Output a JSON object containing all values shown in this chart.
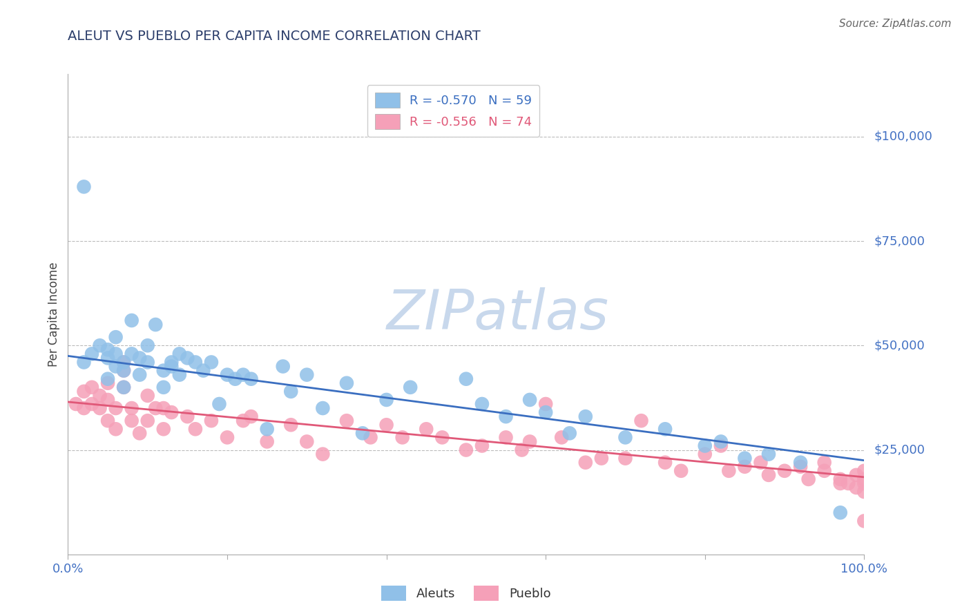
{
  "title": "ALEUT VS PUEBLO PER CAPITA INCOME CORRELATION CHART",
  "source_text": "Source: ZipAtlas.com",
  "ylabel": "Per Capita Income",
  "xlim": [
    0.0,
    1.0
  ],
  "ylim": [
    0,
    115000
  ],
  "aleut_R": -0.57,
  "aleut_N": 59,
  "pueblo_R": -0.556,
  "pueblo_N": 74,
  "aleut_color": "#90C0E8",
  "pueblo_color": "#F5A0B8",
  "aleut_line_color": "#3A6EC0",
  "pueblo_line_color": "#E05878",
  "title_color": "#2C3E6B",
  "ytick_color": "#4472C4",
  "xtick_color": "#4472C4",
  "source_color": "#666666",
  "watermark_zip_color": "#C8D8EC",
  "watermark_atlas_color": "#C8D8EC",
  "background_color": "#FFFFFF",
  "grid_color": "#BBBBBB",
  "aleut_intercept": 47500,
  "aleut_slope": -25000,
  "pueblo_intercept": 36500,
  "pueblo_slope": -18000,
  "aleut_x": [
    0.02,
    0.03,
    0.04,
    0.05,
    0.05,
    0.05,
    0.06,
    0.06,
    0.06,
    0.07,
    0.07,
    0.07,
    0.08,
    0.08,
    0.09,
    0.09,
    0.1,
    0.1,
    0.11,
    0.12,
    0.12,
    0.13,
    0.13,
    0.14,
    0.14,
    0.15,
    0.16,
    0.17,
    0.18,
    0.19,
    0.2,
    0.21,
    0.22,
    0.23,
    0.25,
    0.27,
    0.28,
    0.3,
    0.32,
    0.35,
    0.37,
    0.4,
    0.43,
    0.5,
    0.52,
    0.55,
    0.58,
    0.6,
    0.63,
    0.65,
    0.7,
    0.75,
    0.8,
    0.82,
    0.85,
    0.88,
    0.92,
    0.97,
    0.02
  ],
  "aleut_y": [
    88000,
    48000,
    50000,
    49000,
    47000,
    42000,
    52000,
    48000,
    45000,
    46000,
    44000,
    40000,
    56000,
    48000,
    47000,
    43000,
    50000,
    46000,
    55000,
    44000,
    40000,
    46000,
    45000,
    48000,
    43000,
    47000,
    46000,
    44000,
    46000,
    36000,
    43000,
    42000,
    43000,
    42000,
    30000,
    45000,
    39000,
    43000,
    35000,
    41000,
    29000,
    37000,
    40000,
    42000,
    36000,
    33000,
    37000,
    34000,
    29000,
    33000,
    28000,
    30000,
    26000,
    27000,
    23000,
    24000,
    22000,
    10000,
    46000
  ],
  "pueblo_x": [
    0.01,
    0.02,
    0.02,
    0.03,
    0.03,
    0.04,
    0.04,
    0.05,
    0.05,
    0.05,
    0.06,
    0.06,
    0.07,
    0.07,
    0.07,
    0.08,
    0.08,
    0.09,
    0.1,
    0.1,
    0.11,
    0.12,
    0.12,
    0.13,
    0.15,
    0.16,
    0.18,
    0.2,
    0.22,
    0.23,
    0.25,
    0.28,
    0.3,
    0.32,
    0.35,
    0.38,
    0.4,
    0.42,
    0.45,
    0.47,
    0.5,
    0.52,
    0.55,
    0.57,
    0.58,
    0.6,
    0.62,
    0.65,
    0.67,
    0.7,
    0.72,
    0.75,
    0.77,
    0.8,
    0.82,
    0.83,
    0.85,
    0.87,
    0.88,
    0.9,
    0.92,
    0.93,
    0.95,
    0.95,
    0.97,
    0.97,
    0.98,
    0.99,
    0.99,
    1.0,
    1.0,
    1.0,
    1.0,
    1.0
  ],
  "pueblo_y": [
    36000,
    39000,
    35000,
    40000,
    36000,
    38000,
    35000,
    41000,
    37000,
    32000,
    35000,
    30000,
    46000,
    44000,
    40000,
    35000,
    32000,
    29000,
    38000,
    32000,
    35000,
    35000,
    30000,
    34000,
    33000,
    30000,
    32000,
    28000,
    32000,
    33000,
    27000,
    31000,
    27000,
    24000,
    32000,
    28000,
    31000,
    28000,
    30000,
    28000,
    25000,
    26000,
    28000,
    25000,
    27000,
    36000,
    28000,
    22000,
    23000,
    23000,
    32000,
    22000,
    20000,
    24000,
    26000,
    20000,
    21000,
    22000,
    19000,
    20000,
    21000,
    18000,
    22000,
    20000,
    17000,
    18000,
    17000,
    19000,
    16000,
    18000,
    20000,
    15000,
    17000,
    8000
  ]
}
